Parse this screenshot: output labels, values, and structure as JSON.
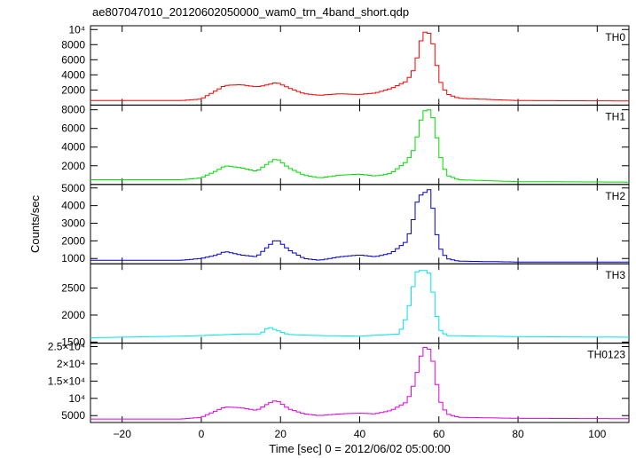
{
  "chart_data": {
    "type": "line",
    "title": "ae807047010_20120602050000_wam0_trn_4band_short.qdp",
    "xlabel": "Time [sec] 0 = 2012/06/02 05:00:00",
    "ylabel": "Counts/sec",
    "xlim": [
      -28,
      108
    ],
    "xticks": [
      -20,
      0,
      20,
      40,
      60,
      80,
      100
    ],
    "xtick_labels": [
      "−20",
      "0",
      "20",
      "40",
      "60",
      "80",
      "100"
    ],
    "panels": [
      {
        "name": "TH0",
        "color": "#ff0000",
        "ylim": [
          0,
          10500
        ],
        "yticks": [
          2000,
          4000,
          6000,
          8000,
          10000
        ],
        "ytick_labels": [
          "2000",
          "4000",
          "6000",
          "8000",
          "10⁴"
        ],
        "profile": [
          [
            -28,
            600
          ],
          [
            -5,
            600
          ],
          [
            0,
            800
          ],
          [
            4,
            2000
          ],
          [
            6,
            2600
          ],
          [
            10,
            2700
          ],
          [
            14,
            2400
          ],
          [
            17,
            2700
          ],
          [
            19,
            3000
          ],
          [
            22,
            2300
          ],
          [
            26,
            1500
          ],
          [
            30,
            1300
          ],
          [
            35,
            1500
          ],
          [
            40,
            1400
          ],
          [
            44,
            1600
          ],
          [
            48,
            2200
          ],
          [
            52,
            3200
          ],
          [
            54,
            5000
          ],
          [
            55,
            7500
          ],
          [
            56,
            9500
          ],
          [
            57,
            9800
          ],
          [
            58,
            9200
          ],
          [
            59,
            7000
          ],
          [
            60,
            3500
          ],
          [
            62,
            1500
          ],
          [
            65,
            900
          ],
          [
            80,
            600
          ],
          [
            108,
            550
          ]
        ]
      },
      {
        "name": "TH1",
        "color": "#00dd00",
        "ylim": [
          0,
          8500
        ],
        "yticks": [
          2000,
          4000,
          6000,
          8000
        ],
        "ytick_labels": [
          "2000",
          "4000",
          "6000",
          "8000"
        ],
        "profile": [
          [
            -28,
            500
          ],
          [
            -5,
            500
          ],
          [
            0,
            700
          ],
          [
            4,
            1500
          ],
          [
            6,
            2000
          ],
          [
            10,
            1800
          ],
          [
            14,
            1400
          ],
          [
            17,
            2300
          ],
          [
            19,
            2800
          ],
          [
            22,
            1800
          ],
          [
            26,
            1000
          ],
          [
            30,
            700
          ],
          [
            35,
            1000
          ],
          [
            40,
            1100
          ],
          [
            44,
            900
          ],
          [
            48,
            1200
          ],
          [
            52,
            2500
          ],
          [
            54,
            4000
          ],
          [
            55,
            6200
          ],
          [
            56,
            7600
          ],
          [
            57,
            8200
          ],
          [
            58,
            7800
          ],
          [
            59,
            6500
          ],
          [
            60,
            3500
          ],
          [
            62,
            1000
          ],
          [
            65,
            500
          ],
          [
            80,
            300
          ],
          [
            108,
            250
          ]
        ]
      },
      {
        "name": "TH2",
        "color": "#0000cc",
        "ylim": [
          700,
          5200
        ],
        "yticks": [
          1000,
          2000,
          3000,
          4000,
          5000
        ],
        "ytick_labels": [
          "1000",
          "2000",
          "3000",
          "4000",
          "5000"
        ],
        "profile": [
          [
            -28,
            900
          ],
          [
            -5,
            900
          ],
          [
            0,
            1000
          ],
          [
            4,
            1200
          ],
          [
            6,
            1400
          ],
          [
            10,
            1200
          ],
          [
            14,
            1100
          ],
          [
            17,
            1700
          ],
          [
            19,
            2100
          ],
          [
            22,
            1500
          ],
          [
            26,
            1000
          ],
          [
            30,
            900
          ],
          [
            35,
            1100
          ],
          [
            40,
            1200
          ],
          [
            44,
            1100
          ],
          [
            48,
            1300
          ],
          [
            52,
            2000
          ],
          [
            54,
            3600
          ],
          [
            55,
            4800
          ],
          [
            56,
            4400
          ],
          [
            57,
            5100
          ],
          [
            58,
            4700
          ],
          [
            59,
            3000
          ],
          [
            60,
            1700
          ],
          [
            62,
            1000
          ],
          [
            65,
            850
          ],
          [
            80,
            800
          ],
          [
            108,
            800
          ]
        ]
      },
      {
        "name": "TH3",
        "color": "#00e5e5",
        "ylim": [
          1480,
          2950
        ],
        "yticks": [
          1500,
          2000,
          2500
        ],
        "ytick_labels": [
          "1500",
          "2000",
          "2500"
        ],
        "profile": [
          [
            -28,
            1580
          ],
          [
            -5,
            1610
          ],
          [
            0,
            1620
          ],
          [
            10,
            1650
          ],
          [
            15,
            1650
          ],
          [
            17,
            1780
          ],
          [
            19,
            1720
          ],
          [
            22,
            1640
          ],
          [
            30,
            1620
          ],
          [
            40,
            1610
          ],
          [
            50,
            1650
          ],
          [
            52,
            2000
          ],
          [
            54,
            2700
          ],
          [
            55,
            2900
          ],
          [
            56,
            2750
          ],
          [
            57,
            2900
          ],
          [
            58,
            2650
          ],
          [
            59,
            2200
          ],
          [
            60,
            1750
          ],
          [
            62,
            1620
          ],
          [
            80,
            1600
          ],
          [
            108,
            1590
          ]
        ]
      },
      {
        "name": "TH0123",
        "color": "#e000e0",
        "ylim": [
          3000,
          26000
        ],
        "yticks": [
          5000,
          10000,
          15000,
          20000,
          25000
        ],
        "ytick_labels": [
          "5000",
          "10⁴",
          "1.5×10⁴",
          "2×10⁴",
          "2.5×10⁴"
        ],
        "profile": [
          [
            -28,
            4000
          ],
          [
            -5,
            4000
          ],
          [
            0,
            4500
          ],
          [
            4,
            6500
          ],
          [
            6,
            7500
          ],
          [
            10,
            7300
          ],
          [
            14,
            6500
          ],
          [
            17,
            8500
          ],
          [
            19,
            9500
          ],
          [
            22,
            7000
          ],
          [
            26,
            5500
          ],
          [
            30,
            5000
          ],
          [
            35,
            5500
          ],
          [
            40,
            5700
          ],
          [
            44,
            5500
          ],
          [
            48,
            6500
          ],
          [
            52,
            9000
          ],
          [
            54,
            15000
          ],
          [
            55,
            20000
          ],
          [
            56,
            24500
          ],
          [
            57,
            25000
          ],
          [
            58,
            23500
          ],
          [
            59,
            18000
          ],
          [
            60,
            10000
          ],
          [
            62,
            5500
          ],
          [
            65,
            4500
          ],
          [
            80,
            4200
          ],
          [
            108,
            4100
          ]
        ]
      }
    ]
  }
}
